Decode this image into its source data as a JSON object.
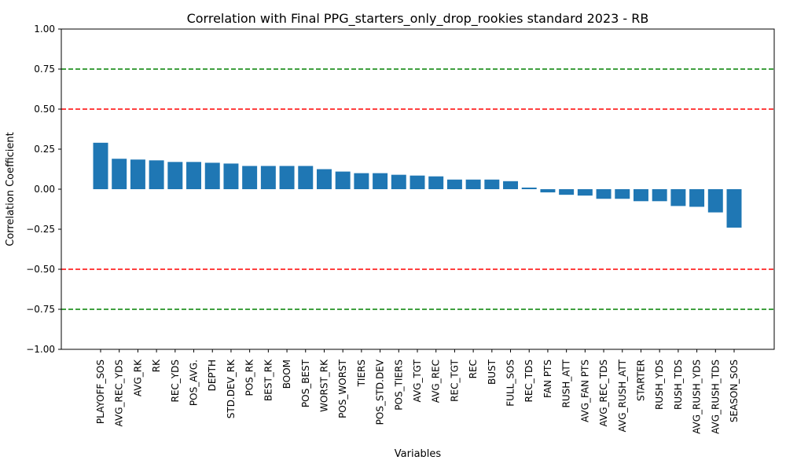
{
  "chart_data": {
    "type": "bar",
    "title": "Correlation with Final PPG_starters_only_drop_rookies standard 2023 - RB",
    "xlabel": "Variables",
    "ylabel": "Correlation Coefficient",
    "ylim": [
      -1.0,
      1.0
    ],
    "yticks": [
      -1.0,
      -0.75,
      -0.5,
      -0.25,
      0.0,
      0.25,
      0.5,
      0.75,
      1.0
    ],
    "ytick_labels": [
      "−1.00",
      "−0.75",
      "−0.50",
      "−0.25",
      "0.00",
      "0.25",
      "0.50",
      "0.75",
      "1.00"
    ],
    "grid": false,
    "bar_color": "#1f77b4",
    "reference_lines": [
      {
        "y": 0.75,
        "color": "#008000",
        "style": "dashed"
      },
      {
        "y": 0.5,
        "color": "#ff0000",
        "style": "dashed"
      },
      {
        "y": -0.5,
        "color": "#ff0000",
        "style": "dashed"
      },
      {
        "y": -0.75,
        "color": "#008000",
        "style": "dashed"
      }
    ],
    "categories": [
      "PLAYOFF_SOS",
      "AVG_REC_YDS",
      "AVG_RK",
      "RK",
      "REC_YDS",
      "POS_AVG.",
      "DEPTH",
      "STD.DEV_RK",
      "POS_RK",
      "BEST_RK",
      "BOOM",
      "POS_BEST",
      "WORST_RK",
      "POS_WORST",
      "TIERS",
      "POS_STD.DEV",
      "POS_TIERS",
      "AVG_TGT",
      "AVG_REC",
      "REC_TGT",
      "REC",
      "BUST",
      "FULL_SOS",
      "REC_TDS",
      "FAN PTS",
      "RUSH_ATT",
      "AVG_FAN PTS",
      "AVG_REC_TDS",
      "AVG_RUSH_ATT",
      "STARTER",
      "RUSH_YDS",
      "RUSH_TDS",
      "AVG_RUSH_YDS",
      "AVG_RUSH_TDS",
      "SEASON_SOS"
    ],
    "values": [
      0.29,
      0.19,
      0.185,
      0.18,
      0.17,
      0.17,
      0.165,
      0.16,
      0.145,
      0.145,
      0.145,
      0.145,
      0.125,
      0.11,
      0.1,
      0.1,
      0.09,
      0.085,
      0.08,
      0.06,
      0.06,
      0.06,
      0.05,
      0.01,
      -0.02,
      -0.035,
      -0.04,
      -0.06,
      -0.06,
      -0.075,
      -0.075,
      -0.105,
      -0.11,
      -0.145,
      -0.24
    ]
  }
}
